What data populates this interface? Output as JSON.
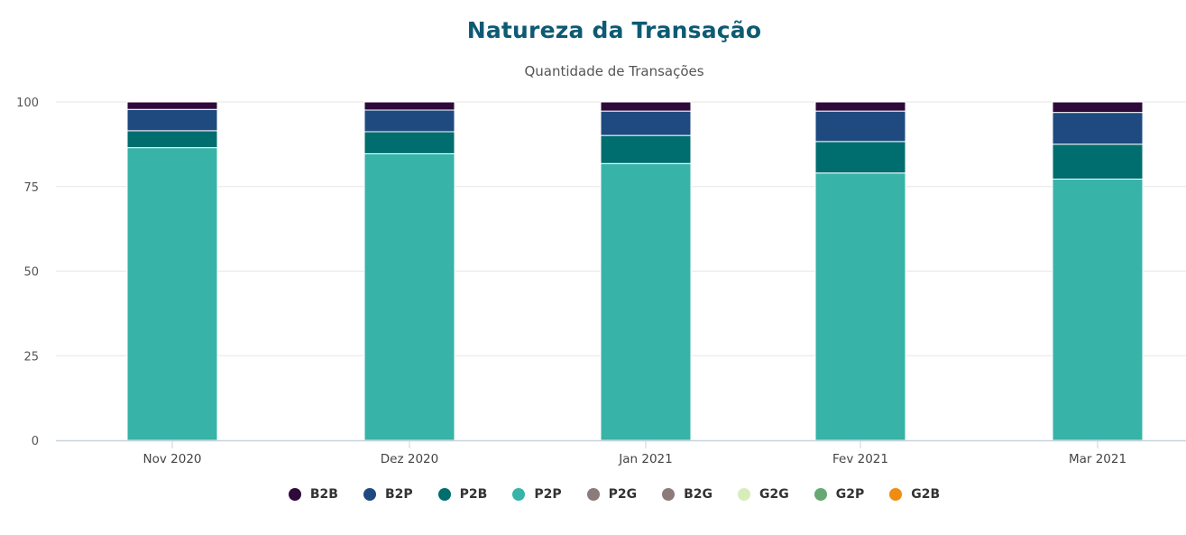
{
  "chart_data": {
    "type": "bar",
    "stacked": true,
    "title": "Natureza da Transação",
    "subtitle": "Quantidade de Transações",
    "xlabel": "",
    "ylabel": "",
    "ylim": [
      0,
      100
    ],
    "yticks": [
      0,
      25,
      50,
      75,
      100
    ],
    "grid": true,
    "legend_position": "bottom",
    "categories": [
      "Nov 2020",
      "Dez 2020",
      "Jan 2021",
      "Fev 2021",
      "Mar 2021"
    ],
    "series": [
      {
        "name": "P2P",
        "color": "#37b3a8",
        "values": [
          86.5,
          84.7,
          81.8,
          79.0,
          77.2
        ]
      },
      {
        "name": "P2B",
        "color": "#006d6e",
        "values": [
          5.0,
          6.5,
          8.3,
          9.3,
          10.3
        ]
      },
      {
        "name": "B2P",
        "color": "#1f4a80",
        "values": [
          6.3,
          6.4,
          7.2,
          9.0,
          9.4
        ]
      },
      {
        "name": "B2B",
        "color": "#2e0a3a",
        "values": [
          2.2,
          2.4,
          2.7,
          2.7,
          3.1
        ]
      },
      {
        "name": "P2G",
        "color": "#8c7b7b",
        "values": [
          0,
          0,
          0,
          0,
          0
        ]
      },
      {
        "name": "B2G",
        "color": "#8c7b7b",
        "values": [
          0,
          0,
          0,
          0,
          0
        ]
      },
      {
        "name": "G2G",
        "color": "#d6eeb9",
        "values": [
          0,
          0,
          0,
          0,
          0
        ]
      },
      {
        "name": "G2P",
        "color": "#67a974",
        "values": [
          0,
          0,
          0,
          0,
          0
        ]
      },
      {
        "name": "G2B",
        "color": "#f08c10",
        "values": [
          0,
          0,
          0,
          0,
          0
        ]
      }
    ],
    "legend": [
      {
        "name": "B2B",
        "color": "#2e0a3a"
      },
      {
        "name": "B2P",
        "color": "#1f4a80"
      },
      {
        "name": "P2B",
        "color": "#006d6e"
      },
      {
        "name": "P2P",
        "color": "#37b3a8"
      },
      {
        "name": "P2G",
        "color": "#8c7b7b"
      },
      {
        "name": "B2G",
        "color": "#8c7b7b"
      },
      {
        "name": "G2G",
        "color": "#d6eeb9"
      },
      {
        "name": "G2P",
        "color": "#67a974"
      },
      {
        "name": "G2B",
        "color": "#f08c10"
      }
    ]
  }
}
